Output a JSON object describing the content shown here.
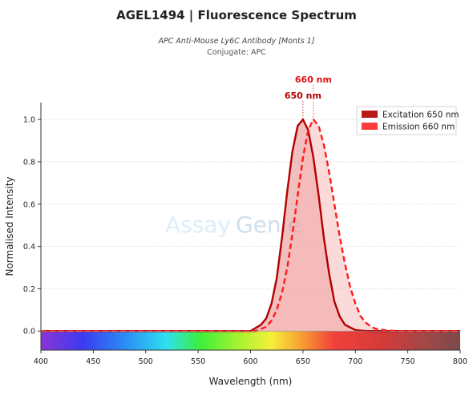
{
  "title": "AGEL1494  |  Fluorescence Spectrum",
  "subtitle": "APC Anti-Mouse Ly6C Antibody [Monts 1]",
  "conjugate": "Conjugate: APC",
  "watermark": {
    "part1": "Assay",
    "part2": "Genie"
  },
  "colors": {
    "excitation": "#b30000",
    "emission": "#ff1a1a",
    "excitation_fill": "#e88a8a",
    "emission_fill": "#f7b5b5"
  },
  "chart_data": {
    "type": "line",
    "xlabel": "Wavelength (nm)",
    "ylabel": "Normalised Intensity",
    "xlim": [
      400,
      800
    ],
    "ylim": [
      -0.09,
      1.08
    ],
    "xticks": [
      400,
      450,
      500,
      550,
      600,
      650,
      700,
      750,
      800
    ],
    "yticks": [
      0.0,
      0.2,
      0.4,
      0.6,
      0.8,
      1.0
    ],
    "grid": true,
    "legend_position": "top-right",
    "series": [
      {
        "name": "Excitation",
        "legend_label": "Excitation  650 nm",
        "peak_label": "650 nm",
        "line_style": "solid",
        "peak": 650,
        "x": [
          400,
          600,
          610,
          615,
          620,
          625,
          630,
          635,
          640,
          645,
          650,
          655,
          660,
          665,
          670,
          675,
          680,
          685,
          690,
          700,
          710,
          800
        ],
        "y": [
          0.0,
          0.0,
          0.03,
          0.06,
          0.13,
          0.25,
          0.44,
          0.66,
          0.85,
          0.97,
          1.0,
          0.95,
          0.82,
          0.64,
          0.44,
          0.27,
          0.14,
          0.07,
          0.03,
          0.005,
          0.0,
          0.0
        ]
      },
      {
        "name": "Emission",
        "legend_label": "Emission  660 nm",
        "peak_label": "660 nm",
        "line_style": "dashed",
        "peak": 660,
        "x": [
          400,
          605,
          615,
          620,
          625,
          630,
          635,
          640,
          645,
          650,
          655,
          660,
          665,
          670,
          675,
          680,
          685,
          690,
          695,
          700,
          705,
          710,
          715,
          720,
          730,
          740,
          800
        ],
        "y": [
          0.0,
          0.0,
          0.02,
          0.05,
          0.1,
          0.18,
          0.3,
          0.46,
          0.64,
          0.82,
          0.95,
          1.0,
          0.97,
          0.88,
          0.75,
          0.6,
          0.45,
          0.32,
          0.21,
          0.13,
          0.07,
          0.04,
          0.02,
          0.01,
          0.003,
          0.0,
          0.0
        ]
      }
    ]
  }
}
